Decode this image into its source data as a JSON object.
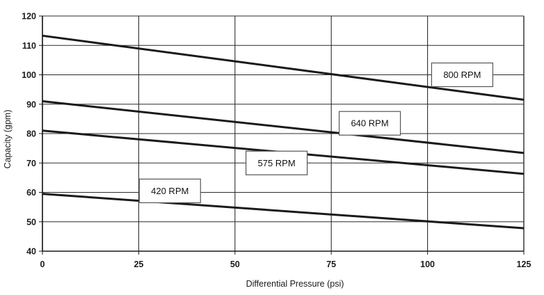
{
  "chart_data": {
    "type": "line",
    "title": "",
    "xlabel": "Differential Pressure (psi)",
    "ylabel": "Capacity (gpm)",
    "xlim": [
      0,
      125
    ],
    "ylim": [
      40,
      120
    ],
    "xticks": [
      0,
      25,
      50,
      75,
      100,
      125
    ],
    "yticks": [
      40,
      50,
      60,
      70,
      80,
      90,
      100,
      110,
      120
    ],
    "xtick_labels": [
      "0",
      "25",
      "50",
      "75",
      "100",
      "125"
    ],
    "ytick_labels": [
      "40",
      "50",
      "60",
      "70",
      "80",
      "90",
      "100",
      "110",
      "120"
    ],
    "grid": true,
    "legend": "none",
    "series": [
      {
        "name": "800 RPM",
        "x": [
          0,
          125
        ],
        "y": [
          113.3,
          91.5
        ]
      },
      {
        "name": "640 RPM",
        "x": [
          0,
          125
        ],
        "y": [
          91.0,
          73.4
        ]
      },
      {
        "name": "575 RPM",
        "x": [
          0,
          125
        ],
        "y": [
          81.0,
          66.3
        ]
      },
      {
        "name": "420 RPM",
        "x": [
          0,
          125
        ],
        "y": [
          59.5,
          47.8
        ]
      }
    ],
    "annotations": [
      {
        "text": "800 RPM",
        "x": 109,
        "y": 100
      },
      {
        "text": "640 RPM",
        "x": 85,
        "y": 83.5
      },
      {
        "text": "575 RPM",
        "x": 60.8,
        "y": 70
      },
      {
        "text": "420 RPM",
        "x": 33.1,
        "y": 60.5
      }
    ],
    "colors": {
      "line": "#1a1a1a",
      "grid": "#2b2b2b",
      "label_box_fill": "#ffffff",
      "label_box_stroke": "#555555"
    }
  }
}
